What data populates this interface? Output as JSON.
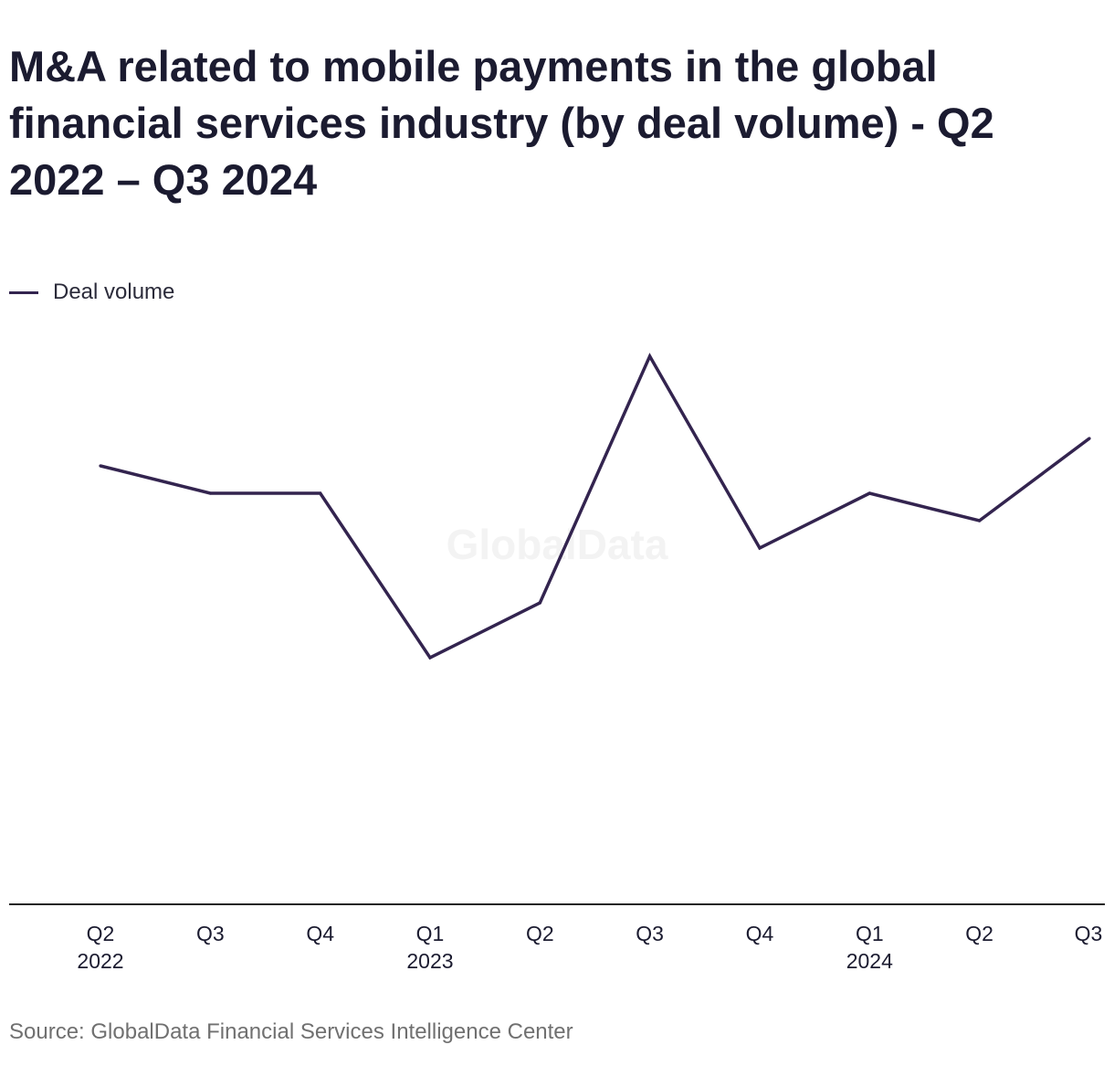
{
  "title": "M&A related to mobile payments in the global financial services industry (by deal volume) - Q2 2022 – Q3 2024",
  "source": "Source: GlobalData Financial Services Intelligence Center",
  "watermark": "GlobalData",
  "colors": {
    "line": "#33244f",
    "axis": "#222222",
    "text": "#1b1b30",
    "source": "#707070"
  },
  "chart_data": {
    "type": "line",
    "categories": [
      "Q2 2022",
      "Q3",
      "Q4",
      "Q1 2023",
      "Q2",
      "Q3",
      "Q4",
      "Q1 2024",
      "Q2",
      "Q3"
    ],
    "tick_labels": [
      {
        "quarter": "Q2",
        "year": "2022"
      },
      {
        "quarter": "Q3",
        "year": ""
      },
      {
        "quarter": "Q4",
        "year": ""
      },
      {
        "quarter": "Q1",
        "year": "2023"
      },
      {
        "quarter": "Q2",
        "year": ""
      },
      {
        "quarter": "Q3",
        "year": ""
      },
      {
        "quarter": "Q4",
        "year": ""
      },
      {
        "quarter": "Q1",
        "year": "2024"
      },
      {
        "quarter": "Q2",
        "year": ""
      },
      {
        "quarter": "Q3",
        "year": ""
      }
    ],
    "series": [
      {
        "name": "Deal volume",
        "values": [
          16,
          15,
          15,
          9,
          11,
          20,
          13,
          15,
          14,
          17
        ]
      }
    ],
    "ylim": [
      0,
      20
    ],
    "grid": false,
    "legend": "top-left",
    "xlabel": "",
    "ylabel": ""
  }
}
